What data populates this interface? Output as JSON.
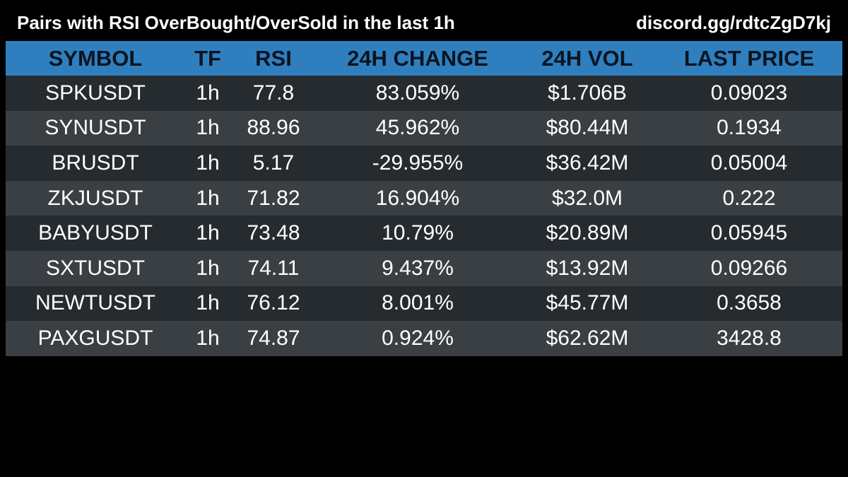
{
  "header": {
    "title": "Pairs with RSI OverBought/OverSold in the last 1h",
    "invite": "discord.gg/rdtcZgD7kj"
  },
  "table": {
    "columns": [
      "SYMBOL",
      "TF",
      "RSI",
      "24H CHANGE",
      "24H VOL",
      "LAST PRICE"
    ],
    "rows": [
      [
        "SPKUSDT",
        "1h",
        "77.8",
        "83.059%",
        "$1.706B",
        "0.09023"
      ],
      [
        "SYNUSDT",
        "1h",
        "88.96",
        "45.962%",
        "$80.44M",
        "0.1934"
      ],
      [
        "BRUSDT",
        "1h",
        "5.17",
        "-29.955%",
        "$36.42M",
        "0.05004"
      ],
      [
        "ZKJUSDT",
        "1h",
        "71.82",
        "16.904%",
        "$32.0M",
        "0.222"
      ],
      [
        "BABYUSDT",
        "1h",
        "73.48",
        "10.79%",
        "$20.89M",
        "0.05945"
      ],
      [
        "SXTUSDT",
        "1h",
        "74.11",
        "9.437%",
        "$13.92M",
        "0.09266"
      ],
      [
        "NEWTUSDT",
        "1h",
        "76.12",
        "8.001%",
        "$45.77M",
        "0.3658"
      ],
      [
        "PAXGUSDT",
        "1h",
        "74.87",
        "0.924%",
        "$62.62M",
        "3428.8"
      ]
    ]
  },
  "colors": {
    "background": "#000000",
    "header_row": "#2f7fbf",
    "header_text": "#0b1420",
    "row_dark": "#262b30",
    "row_light": "#3a3f44",
    "text": "#ffffff"
  }
}
